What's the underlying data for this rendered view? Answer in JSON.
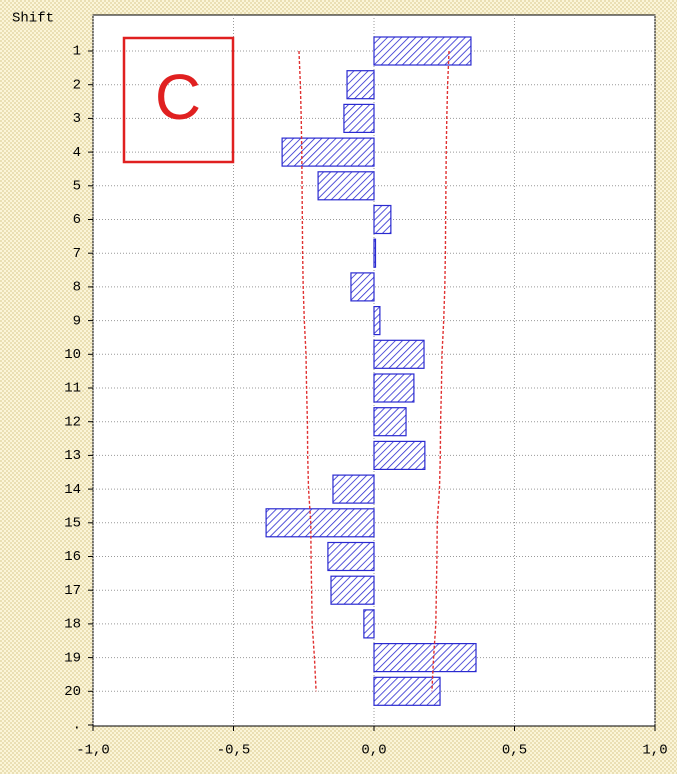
{
  "chart_data": {
    "type": "bar",
    "orientation": "horizontal",
    "ylabel": "Shift",
    "categories": [
      "1",
      "2",
      "3",
      "4",
      "5",
      "6",
      "7",
      "8",
      "9",
      "10",
      "11",
      "12",
      "13",
      "14",
      "15",
      "16",
      "17",
      "18",
      "19",
      "20",
      "."
    ],
    "values": [
      0.345,
      -0.096,
      -0.107,
      -0.327,
      -0.199,
      0.06,
      0,
      -0.082,
      0.021,
      0.178,
      0.142,
      0.114,
      0.181,
      -0.146,
      -0.384,
      -0.164,
      -0.153,
      -0.036,
      0.363,
      0.235,
      null
    ],
    "color": "#2a2ad0",
    "confidence_upper": [
      0.267,
      0.262,
      0.259,
      0.257,
      0.256,
      0.255,
      0.254,
      0.252,
      0.248,
      0.242,
      0.24,
      0.237,
      0.236,
      0.233,
      0.225,
      0.224,
      0.222,
      0.22,
      0.212,
      0.206,
      null
    ],
    "confidence_lower": [
      -0.267,
      -0.262,
      -0.259,
      -0.257,
      -0.256,
      -0.255,
      -0.254,
      -0.252,
      -0.248,
      -0.242,
      -0.24,
      -0.237,
      -0.236,
      -0.233,
      -0.225,
      -0.224,
      -0.222,
      -0.22,
      -0.212,
      -0.206,
      null
    ],
    "confidence_color": "#e03030",
    "xlim": [
      -1,
      1
    ],
    "xticks": [
      {
        "value": -1,
        "label": "-1,0"
      },
      {
        "value": -0.5,
        "label": "-0,5"
      },
      {
        "value": 0,
        "label": "0,0"
      },
      {
        "value": 0.5,
        "label": "0,5"
      },
      {
        "value": 1,
        "label": "1,0"
      }
    ],
    "grid": true,
    "annotation": "C"
  }
}
